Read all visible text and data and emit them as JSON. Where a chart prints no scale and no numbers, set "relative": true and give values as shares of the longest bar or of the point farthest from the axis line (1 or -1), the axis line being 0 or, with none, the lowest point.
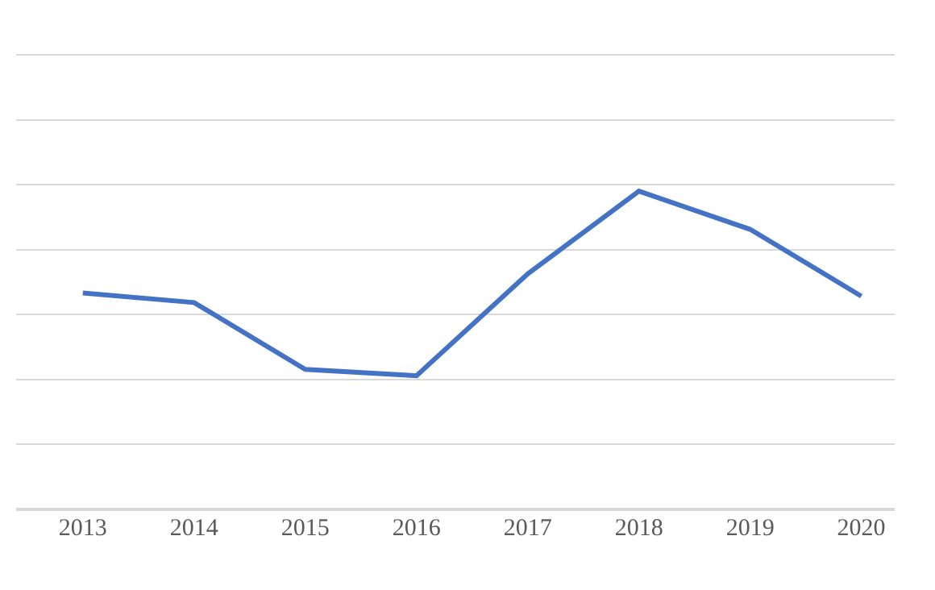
{
  "chart_data": {
    "type": "line",
    "relative": true,
    "grid": "y",
    "legend": false,
    "marker": "none",
    "line_style": "solid",
    "categories": [
      "2013",
      "2014",
      "2015",
      "2016",
      "2017",
      "2018",
      "2019",
      "2020"
    ],
    "series": [
      {
        "color": "#4472c4",
        "values": [
          0.68,
          0.65,
          0.44,
          0.42,
          0.74,
          1,
          0.88,
          0.67
        ]
      }
    ]
  }
}
